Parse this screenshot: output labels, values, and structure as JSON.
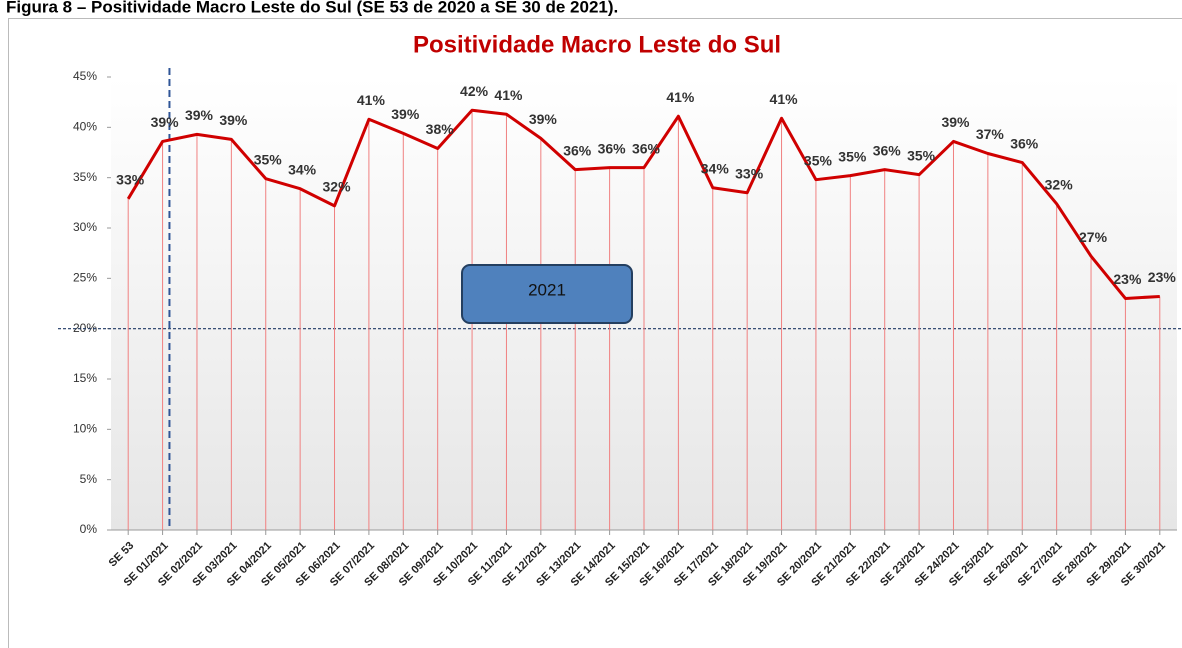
{
  "caption": "Figura 8 – Positividade Macro Leste do Sul (SE 53 de 2020 a SE 30 de 2021).",
  "chart_data": {
    "type": "line",
    "title": "Positividade  Macro Leste do Sul",
    "categories": [
      "SE 53",
      "SE 01/2021",
      "SE 02/2021",
      "SE 03/2021",
      "SE 04/2021",
      "SE 05/2021",
      "SE 06/2021",
      "SE 07/2021",
      "SE 08/2021",
      "SE 09/2021",
      "SE 10/2021",
      "SE 11/2021",
      "SE 12/2021",
      "SE 13/2021",
      "SE 14/2021",
      "SE 15/2021",
      "SE 16/2021",
      "SE 17/2021",
      "SE 18/2021",
      "SE 19/2021",
      "SE 20/2021",
      "SE 21/2021",
      "SE 22/2021",
      "SE 23/2021",
      "SE 24/2021",
      "SE 25/2021",
      "SE 26/2021",
      "SE 27/2021",
      "SE 28/2021",
      "SE 29/2021",
      "SE 30/2021"
    ],
    "series": [
      {
        "name": "Positividade",
        "color": "#d00000",
        "values": [
          32.9,
          38.6,
          39.3,
          38.8,
          34.9,
          33.9,
          32.2,
          40.8,
          39.4,
          37.9,
          41.7,
          41.3,
          38.9,
          35.8,
          36.0,
          36.0,
          41.1,
          34.0,
          33.5,
          40.9,
          34.8,
          35.2,
          35.8,
          35.3,
          38.6,
          37.4,
          36.5,
          32.4,
          27.2,
          23.0,
          23.2
        ],
        "value_labels": [
          "33%",
          "39%",
          "39%",
          "39%",
          "35%",
          "34%",
          "32%",
          "41%",
          "39%",
          "38%",
          "42%",
          "41%",
          "39%",
          "36%",
          "36%",
          "36%",
          "41%",
          "34%",
          "33%",
          "41%",
          "35%",
          "35%",
          "36%",
          "35%",
          "39%",
          "37%",
          "36%",
          "32%",
          "27%",
          "23%",
          "23%"
        ]
      }
    ],
    "ylim": [
      0,
      45
    ],
    "yticks": [
      {
        "value": 0,
        "label": "0%"
      },
      {
        "value": 5,
        "label": "5%"
      },
      {
        "value": 10,
        "label": "10%"
      },
      {
        "value": 15,
        "label": "15%"
      },
      {
        "value": 20,
        "label": "20%"
      },
      {
        "value": 25,
        "label": "25%"
      },
      {
        "value": 30,
        "label": "30%"
      },
      {
        "value": 35,
        "label": "35%"
      },
      {
        "value": 40,
        "label": "40%"
      },
      {
        "value": 45,
        "label": "45%"
      }
    ],
    "reference_y": 20,
    "annotation": "2021"
  }
}
